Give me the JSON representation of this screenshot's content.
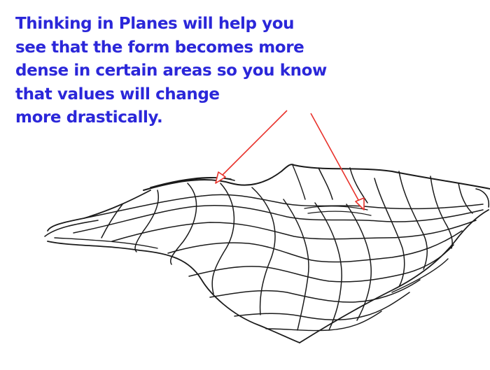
{
  "caption": {
    "lines": [
      "Thinking in Planes will help you",
      "see that the form becomes more",
      "dense in certain areas so you know",
      "that values will change",
      "more drastically."
    ]
  },
  "colors": {
    "text": "#2b27d9",
    "ink": "#1a1a1a",
    "arrow": "#e8322b",
    "background": "#ffffff"
  },
  "illustration": {
    "subject": "wireframe-sheet-sketch",
    "arrows": [
      "arrow-left-ridge",
      "arrow-right-dense-area"
    ]
  }
}
